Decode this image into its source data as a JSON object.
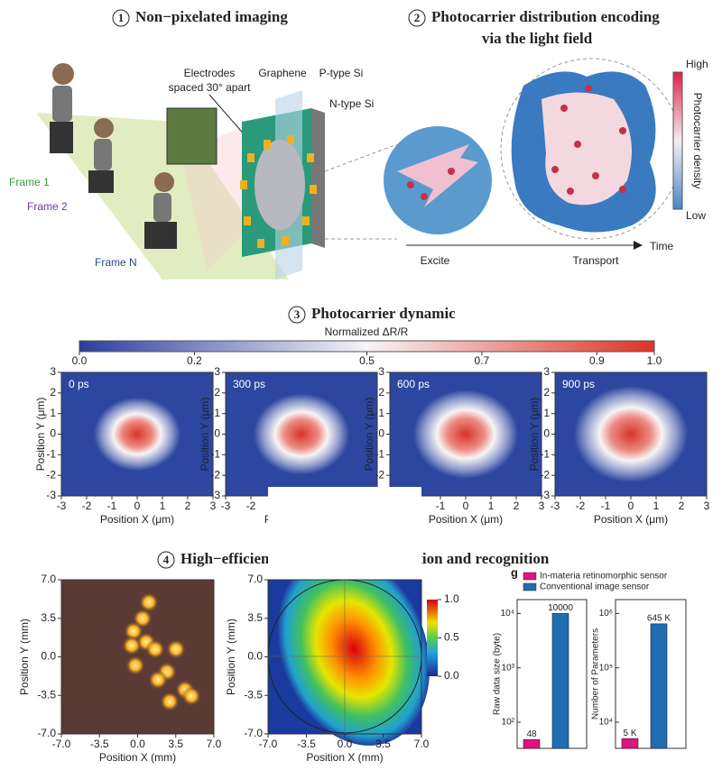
{
  "panel1": {
    "number": "1",
    "title": "Non−pixelated imaging",
    "labels": {
      "electrodes_1": "Electrodes",
      "electrodes_2": "spaced 30° apart",
      "graphene": "Graphene",
      "p_type": "P-type Si",
      "n_type": "N-type Si",
      "frame_1": "Frame 1",
      "frame_2": "Frame 2",
      "frame_n": "Frame N"
    }
  },
  "panel2": {
    "number": "2",
    "title_1": "Photocarrier distribution encoding",
    "title_2": "via the light field",
    "colorbar_high": "High",
    "colorbar_low": "Low",
    "colorbar_label": "Photocarrier density",
    "axis_label": "Time",
    "start_label": "Excite",
    "end_label": "Transport"
  },
  "panel3": {
    "number": "3",
    "title": "Photocarrier dynamic",
    "colorbar_label": "Normalized ΔR/R",
    "colorbar_lim": [
      0,
      1
    ],
    "colorbar_ticks": [
      {
        "value": 0,
        "label": "0.0"
      },
      0.2,
      0.5,
      0.7,
      0.9,
      {
        "value": 1,
        "label": "1.0"
      }
    ],
    "xlabel": "Position X (μm)",
    "ylabel": "Position Y (μm)",
    "xlim": [
      -3,
      3
    ],
    "xticks": [
      -3,
      -2,
      -1,
      0,
      1,
      2,
      3
    ],
    "ylim": [
      -3,
      3
    ],
    "yticks": [
      -3,
      -2,
      -1,
      0,
      1,
      2,
      3
    ],
    "maps": [
      "0 ps",
      "300 ps",
      "600 ps",
      "900 ps"
    ]
  },
  "panel4": {
    "number": "4",
    "title": "High−efficiency, low−latency perception and recognition",
    "xlabel": "Position X (mm)",
    "ylabel": "Position Y (mm)",
    "xlim": [
      -7,
      7
    ],
    "xticks": [
      {
        "value": -7,
        "label": "-7.0"
      },
      {
        "value": -3.5,
        "label": "-3.5"
      },
      {
        "value": 0,
        "label": "0.0"
      },
      {
        "value": 3.5,
        "label": "3.5"
      },
      {
        "value": 7,
        "label": "7.0"
      }
    ],
    "ylim": [
      -7,
      7
    ],
    "yticks": [
      {
        "value": -7,
        "label": "-7.0"
      },
      {
        "value": -3.5,
        "label": "-3.5"
      },
      {
        "value": 0,
        "label": "0.0"
      },
      {
        "value": 3.5,
        "label": "3.5"
      },
      {
        "value": 7,
        "label": "7.0"
      }
    ],
    "colorbar_lim": [
      0,
      1
    ],
    "colorbar_ticks": [
      {
        "value": 0,
        "label": "0.0"
      },
      {
        "value": 0.5,
        "label": "0.5"
      },
      {
        "value": 1,
        "label": "1.0"
      }
    ]
  },
  "chart_data": [
    {
      "type": "bar",
      "panel_label": "g",
      "ylabel": "Raw data size (byte)",
      "log_scale": true,
      "ylim": [
        33,
        18000
      ],
      "yticks": [
        {
          "value": 100,
          "label": "10²"
        },
        {
          "value": 1000,
          "label": "10³"
        },
        {
          "value": 10000,
          "label": "10⁴"
        }
      ],
      "series": [
        {
          "name": "In-materia retinomorphic sensor",
          "color": "#e2137e",
          "values": [
            48
          ]
        },
        {
          "name": "Conventional image sensor",
          "color": "#1f6db3",
          "values": [
            10000
          ]
        }
      ]
    },
    {
      "type": "bar",
      "ylabel": "Number of Parameters",
      "log_scale": true,
      "ylim": [
        3300,
        1800000
      ],
      "yticks": [
        {
          "value": 10000,
          "label": "10⁴"
        },
        {
          "value": 100000,
          "label": "10⁵"
        },
        {
          "value": 1000000,
          "label": "10⁶"
        }
      ],
      "series": [
        {
          "color": "#e2137e",
          "values": [
            5000
          ],
          "value_labels": [
            "5 K"
          ]
        },
        {
          "color": "#1f6db3",
          "values": [
            645000
          ],
          "value_labels": [
            "645 K"
          ]
        }
      ]
    }
  ]
}
